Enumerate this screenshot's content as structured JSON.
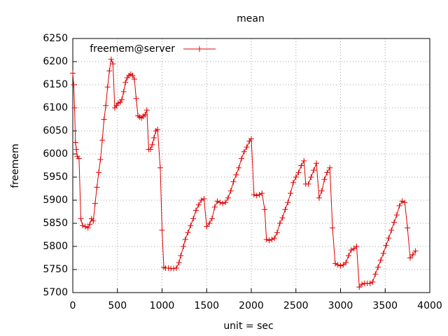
{
  "chart_data": {
    "type": "line",
    "title": "mean",
    "x_label": "unit = sec",
    "y_label": "freemem",
    "x": [
      0,
      10,
      20,
      30,
      40,
      50,
      70,
      90,
      110,
      140,
      170,
      190,
      210,
      230,
      250,
      270,
      290,
      310,
      330,
      350,
      370,
      390,
      410,
      430,
      450,
      470,
      490,
      510,
      530,
      550,
      570,
      590,
      610,
      630,
      650,
      670,
      690,
      710,
      730,
      750,
      770,
      790,
      810,
      830,
      850,
      870,
      890,
      910,
      930,
      950,
      980,
      1000,
      1020,
      1040,
      1070,
      1100,
      1130,
      1160,
      1190,
      1210,
      1240,
      1260,
      1290,
      1320,
      1350,
      1380,
      1410,
      1440,
      1470,
      1500,
      1530,
      1560,
      1590,
      1620,
      1650,
      1680,
      1710,
      1740,
      1770,
      1800,
      1830,
      1860,
      1890,
      1920,
      1950,
      1980,
      2000,
      2030,
      2060,
      2090,
      2120,
      2150,
      2170,
      2200,
      2230,
      2260,
      2290,
      2320,
      2350,
      2380,
      2410,
      2440,
      2470,
      2500,
      2530,
      2560,
      2590,
      2610,
      2640,
      2670,
      2700,
      2730,
      2760,
      2790,
      2820,
      2850,
      2880,
      2910,
      2940,
      2970,
      3000,
      3030,
      3060,
      3090,
      3120,
      3150,
      3180,
      3210,
      3240,
      3270,
      3300,
      3330,
      3360,
      3390,
      3420,
      3450,
      3480,
      3510,
      3540,
      3570,
      3600,
      3630,
      3660,
      3690,
      3720,
      3750,
      3780,
      3810,
      3840
    ],
    "series": [
      {
        "name": "freemem@server",
        "color": "#e00000",
        "values": [
          6175,
          6150,
          6100,
          6025,
          6010,
          5995,
          5990,
          5860,
          5845,
          5843,
          5840,
          5848,
          5860,
          5855,
          5893,
          5928,
          5960,
          5988,
          6030,
          6075,
          6105,
          6145,
          6180,
          6205,
          6195,
          6100,
          6105,
          6110,
          6112,
          6118,
          6135,
          6155,
          6165,
          6170,
          6173,
          6170,
          6162,
          6120,
          6083,
          6080,
          6078,
          6082,
          6085,
          6095,
          6010,
          6010,
          6020,
          6035,
          6050,
          6053,
          5970,
          5835,
          5755,
          5753,
          5753,
          5752,
          5752,
          5753,
          5765,
          5780,
          5800,
          5815,
          5830,
          5845,
          5860,
          5878,
          5890,
          5900,
          5903,
          5843,
          5850,
          5860,
          5885,
          5898,
          5895,
          5893,
          5895,
          5905,
          5920,
          5940,
          5955,
          5970,
          5990,
          6005,
          6015,
          6028,
          6033,
          5912,
          5910,
          5912,
          5915,
          5880,
          5815,
          5813,
          5815,
          5818,
          5830,
          5850,
          5862,
          5880,
          5895,
          5915,
          5938,
          5950,
          5960,
          5975,
          5985,
          5935,
          5935,
          5950,
          5965,
          5980,
          5905,
          5920,
          5945,
          5960,
          5970,
          5840,
          5763,
          5760,
          5758,
          5760,
          5765,
          5780,
          5792,
          5795,
          5800,
          5712,
          5718,
          5720,
          5720,
          5720,
          5723,
          5740,
          5755,
          5770,
          5785,
          5802,
          5818,
          5835,
          5852,
          5868,
          5888,
          5898,
          5895,
          5840,
          5775,
          5782,
          5790
        ]
      }
    ],
    "xlim": [
      0,
      4000
    ],
    "xticks": [
      0,
      500,
      1000,
      1500,
      2000,
      2500,
      3000,
      3500,
      4000
    ],
    "ylim": [
      5700,
      6250
    ],
    "yticks": [
      5700,
      5750,
      5800,
      5850,
      5900,
      5950,
      6000,
      6050,
      6100,
      6150,
      6200,
      6250
    ],
    "grid": true,
    "legend": "top-left"
  }
}
